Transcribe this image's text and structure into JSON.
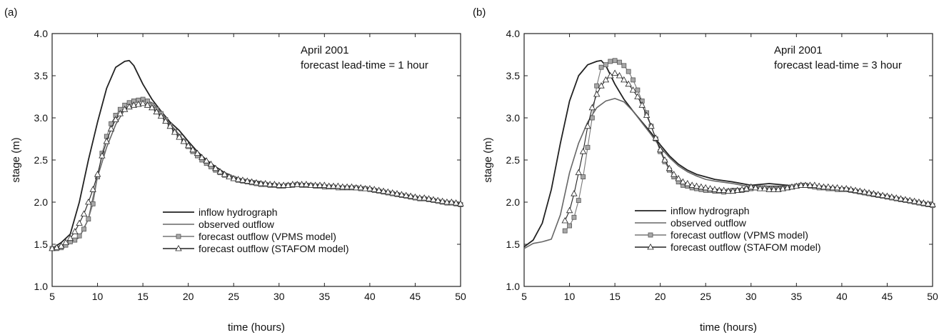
{
  "chart_data": [
    {
      "type": "line",
      "panel_label": "(a)",
      "annotation": [
        "April 2001",
        "forecast lead-time = 1 hour"
      ],
      "xlabel": "time (hours)",
      "ylabel": "stage (m)",
      "xlim": [
        5,
        50
      ],
      "ylim": [
        1.0,
        4.0
      ],
      "xticks": [
        5,
        10,
        15,
        20,
        25,
        30,
        35,
        40,
        45,
        50
      ],
      "yticks": [
        1.0,
        1.5,
        2.0,
        2.5,
        3.0,
        3.5,
        4.0
      ],
      "legend_position": "lower-center",
      "series": [
        {
          "name": "inflow hydrograph",
          "color": "#222222",
          "marker": "none",
          "x": [
            5,
            6,
            7,
            8,
            9,
            10,
            11,
            12,
            13,
            13.5,
            14,
            15,
            16,
            17,
            18,
            19,
            20,
            21,
            22,
            23,
            24,
            25,
            26,
            28,
            30,
            32,
            34,
            36,
            38,
            40,
            42,
            44,
            46,
            48,
            50
          ],
          "y": [
            1.45,
            1.52,
            1.62,
            2.0,
            2.5,
            2.95,
            3.35,
            3.6,
            3.67,
            3.68,
            3.62,
            3.4,
            3.22,
            3.08,
            2.95,
            2.85,
            2.72,
            2.6,
            2.5,
            2.42,
            2.35,
            2.3,
            2.27,
            2.24,
            2.2,
            2.22,
            2.2,
            2.18,
            2.17,
            2.14,
            2.1,
            2.06,
            2.03,
            2.0,
            1.97
          ]
        },
        {
          "name": "observed outflow",
          "color": "#666666",
          "marker": "none",
          "x": [
            5,
            6,
            7,
            8,
            9,
            10,
            11,
            12,
            13,
            14,
            15,
            16,
            17,
            18,
            19,
            20,
            21,
            22,
            23,
            24,
            25,
            26,
            28,
            30,
            32,
            34,
            36,
            38,
            40,
            42,
            44,
            46,
            48,
            50
          ],
          "y": [
            1.45,
            1.46,
            1.52,
            1.58,
            1.8,
            2.3,
            2.65,
            2.92,
            3.1,
            3.19,
            3.22,
            3.18,
            3.07,
            2.93,
            2.8,
            2.66,
            2.55,
            2.45,
            2.37,
            2.31,
            2.27,
            2.25,
            2.22,
            2.18,
            2.2,
            2.19,
            2.18,
            2.17,
            2.15,
            2.1,
            2.06,
            2.03,
            2.0,
            1.97
          ]
        },
        {
          "name": "forecast outflow (VPMS model)",
          "color": "#777777",
          "marker": "square",
          "fill": "#a8a8a8",
          "x": [
            5,
            5.5,
            6,
            6.5,
            7,
            7.5,
            8,
            8.5,
            9,
            9.5,
            10,
            10.5,
            11,
            11.5,
            12,
            12.5,
            13,
            13.5,
            14,
            14.5,
            15,
            15.5,
            16,
            16.5,
            17,
            17.5,
            18,
            18.5,
            19,
            19.5,
            20,
            20.5,
            21,
            21.5,
            22,
            22.5,
            23,
            23.5,
            24,
            24.5,
            25,
            25.5,
            26,
            26.5,
            27,
            27.5,
            28,
            28.5,
            29,
            29.5,
            30,
            30.5,
            31,
            31.5,
            32,
            32.5,
            33,
            33.5,
            34,
            34.5,
            35,
            35.5,
            36,
            36.5,
            37,
            37.5,
            38,
            38.5,
            39,
            39.5,
            40,
            40.5,
            41,
            41.5,
            42,
            42.5,
            43,
            43.5,
            44,
            44.5,
            45,
            45.5,
            46,
            46.5,
            47,
            47.5,
            48,
            48.5,
            49,
            49.5,
            50
          ],
          "y": [
            1.45,
            1.45,
            1.46,
            1.49,
            1.53,
            1.55,
            1.6,
            1.68,
            1.8,
            1.98,
            2.3,
            2.58,
            2.78,
            2.93,
            3.03,
            3.1,
            3.15,
            3.18,
            3.2,
            3.21,
            3.22,
            3.2,
            3.15,
            3.1,
            3.05,
            2.98,
            2.91,
            2.84,
            2.78,
            2.72,
            2.66,
            2.6,
            2.55,
            2.5,
            2.46,
            2.42,
            2.38,
            2.35,
            2.32,
            2.3,
            2.28,
            2.26,
            2.25,
            2.24,
            2.23,
            2.22,
            2.21,
            2.21,
            2.2,
            2.2,
            2.19,
            2.19,
            2.2,
            2.2,
            2.21,
            2.2,
            2.2,
            2.2,
            2.19,
            2.19,
            2.18,
            2.18,
            2.18,
            2.17,
            2.17,
            2.17,
            2.17,
            2.17,
            2.16,
            2.16,
            2.15,
            2.14,
            2.13,
            2.12,
            2.11,
            2.1,
            2.09,
            2.08,
            2.07,
            2.06,
            2.05,
            2.04,
            2.04,
            2.03,
            2.02,
            2.01,
            2.0,
            1.99,
            1.99,
            1.98,
            1.97
          ]
        },
        {
          "name": "forecast outflow (STAFOM model)",
          "color": "#222222",
          "marker": "triangle",
          "fill": "#ffffff",
          "x": [
            5,
            5.5,
            6,
            6.5,
            7,
            7.5,
            8,
            8.5,
            9,
            9.5,
            10,
            10.5,
            11,
            11.5,
            12,
            12.5,
            13,
            13.5,
            14,
            14.5,
            15,
            15.5,
            16,
            16.5,
            17,
            17.5,
            18,
            18.5,
            19,
            19.5,
            20,
            20.5,
            21,
            21.5,
            22,
            22.5,
            23,
            23.5,
            24,
            24.5,
            25,
            25.5,
            26,
            26.5,
            27,
            27.5,
            28,
            28.5,
            29,
            29.5,
            30,
            30.5,
            31,
            31.5,
            32,
            32.5,
            33,
            33.5,
            34,
            34.5,
            35,
            35.5,
            36,
            36.5,
            37,
            37.5,
            38,
            38.5,
            39,
            39.5,
            40,
            40.5,
            41,
            41.5,
            42,
            42.5,
            43,
            43.5,
            44,
            44.5,
            45,
            45.5,
            46,
            46.5,
            47,
            47.5,
            48,
            48.5,
            49,
            49.5,
            50
          ],
          "y": [
            1.45,
            1.46,
            1.48,
            1.52,
            1.57,
            1.65,
            1.75,
            1.86,
            2.0,
            2.15,
            2.33,
            2.55,
            2.72,
            2.87,
            2.98,
            3.05,
            3.1,
            3.13,
            3.15,
            3.16,
            3.17,
            3.15,
            3.12,
            3.07,
            3.02,
            2.96,
            2.9,
            2.83,
            2.77,
            2.72,
            2.67,
            2.62,
            2.58,
            2.53,
            2.49,
            2.45,
            2.4,
            2.36,
            2.33,
            2.3,
            2.28,
            2.27,
            2.26,
            2.25,
            2.24,
            2.23,
            2.22,
            2.22,
            2.21,
            2.21,
            2.2,
            2.2,
            2.2,
            2.21,
            2.21,
            2.21,
            2.21,
            2.2,
            2.2,
            2.2,
            2.2,
            2.19,
            2.19,
            2.19,
            2.18,
            2.18,
            2.18,
            2.17,
            2.17,
            2.16,
            2.16,
            2.15,
            2.14,
            2.13,
            2.12,
            2.11,
            2.1,
            2.09,
            2.08,
            2.07,
            2.06,
            2.05,
            2.05,
            2.04,
            2.03,
            2.02,
            2.01,
            2.0,
            2.0,
            1.99,
            1.98
          ]
        }
      ]
    },
    {
      "type": "line",
      "panel_label": "(b)",
      "annotation": [
        "April 2001",
        "forecast lead-time = 3 hour"
      ],
      "xlabel": "time (hours)",
      "ylabel": "stage (m)",
      "xlim": [
        5,
        50
      ],
      "ylim": [
        1.0,
        4.0
      ],
      "xticks": [
        5,
        10,
        15,
        20,
        25,
        30,
        35,
        40,
        45,
        50
      ],
      "yticks": [
        1.0,
        1.5,
        2.0,
        2.5,
        3.0,
        3.5,
        4.0
      ],
      "legend_position": "lower-center",
      "series": [
        {
          "name": "inflow hydrograph",
          "color": "#222222",
          "marker": "none",
          "x": [
            5,
            6,
            7,
            8,
            9,
            10,
            11,
            12,
            13,
            13.5,
            14,
            15,
            16,
            17,
            18,
            19,
            20,
            21,
            22,
            23,
            24,
            25,
            26,
            28,
            30,
            32,
            34,
            36,
            38,
            40,
            42,
            44,
            46,
            48,
            50
          ],
          "y": [
            1.47,
            1.55,
            1.75,
            2.15,
            2.7,
            3.2,
            3.5,
            3.63,
            3.67,
            3.68,
            3.62,
            3.4,
            3.22,
            3.08,
            2.95,
            2.82,
            2.68,
            2.55,
            2.45,
            2.38,
            2.33,
            2.3,
            2.27,
            2.24,
            2.2,
            2.22,
            2.2,
            2.19,
            2.17,
            2.14,
            2.1,
            2.06,
            2.03,
            2.0,
            1.97
          ]
        },
        {
          "name": "observed outflow",
          "color": "#666666",
          "marker": "none",
          "x": [
            5,
            6,
            7,
            8,
            9,
            10,
            11,
            12,
            13,
            14,
            15,
            16,
            17,
            18,
            19,
            20,
            21,
            22,
            23,
            24,
            25,
            26,
            28,
            30,
            32,
            34,
            36,
            38,
            40,
            42,
            44,
            46,
            48,
            50
          ],
          "y": [
            1.45,
            1.51,
            1.53,
            1.56,
            1.85,
            2.35,
            2.7,
            2.95,
            3.12,
            3.2,
            3.23,
            3.19,
            3.08,
            2.94,
            2.8,
            2.65,
            2.53,
            2.43,
            2.36,
            2.31,
            2.27,
            2.25,
            2.22,
            2.18,
            2.19,
            2.19,
            2.18,
            2.17,
            2.15,
            2.1,
            2.06,
            2.03,
            2.0,
            1.97
          ]
        },
        {
          "name": "forecast outflow (VPMS model)",
          "color": "#777777",
          "marker": "square",
          "fill": "#a8a8a8",
          "x": [
            9.5,
            10,
            10.5,
            11,
            11.5,
            12,
            12.5,
            13,
            13.5,
            14,
            14.5,
            15,
            15.5,
            16,
            16.5,
            17,
            17.5,
            18,
            18.5,
            19,
            19.5,
            20,
            20.5,
            21,
            21.5,
            22,
            22.5,
            23,
            23.5,
            24,
            24.5,
            25,
            25.5,
            26,
            26.5,
            27,
            27.5,
            28,
            28.5,
            29,
            29.5,
            30,
            30.5,
            31,
            31.5,
            32,
            32.5,
            33,
            33.5,
            34,
            34.5,
            35,
            35.5,
            36,
            36.5,
            37,
            37.5,
            38,
            38.5,
            39,
            39.5,
            40,
            40.5,
            41,
            41.5,
            42,
            42.5,
            43,
            43.5,
            44,
            44.5,
            45,
            45.5,
            46,
            46.5,
            47,
            47.5,
            48,
            48.5,
            49,
            49.5,
            50
          ],
          "y": [
            1.66,
            1.72,
            1.82,
            2.02,
            2.3,
            2.65,
            3.0,
            3.38,
            3.6,
            3.63,
            3.67,
            3.68,
            3.66,
            3.62,
            3.55,
            3.45,
            3.33,
            3.2,
            3.06,
            2.9,
            2.75,
            2.6,
            2.48,
            2.38,
            2.3,
            2.24,
            2.2,
            2.19,
            2.17,
            2.16,
            2.15,
            2.14,
            2.14,
            2.13,
            2.13,
            2.12,
            2.13,
            2.14,
            2.14,
            2.14,
            2.15,
            2.16,
            2.17,
            2.17,
            2.17,
            2.16,
            2.16,
            2.16,
            2.16,
            2.17,
            2.18,
            2.19,
            2.2,
            2.2,
            2.19,
            2.18,
            2.17,
            2.17,
            2.16,
            2.16,
            2.15,
            2.15,
            2.15,
            2.14,
            2.13,
            2.12,
            2.11,
            2.1,
            2.09,
            2.08,
            2.07,
            2.06,
            2.05,
            2.04,
            2.03,
            2.02,
            2.01,
            2.0,
            1.99,
            1.98,
            1.97,
            1.96
          ]
        },
        {
          "name": "forecast outflow (STAFOM model)",
          "color": "#222222",
          "marker": "triangle",
          "fill": "#ffffff",
          "x": [
            9.5,
            10,
            10.5,
            11,
            11.5,
            12,
            12.5,
            13,
            13.5,
            14,
            14.5,
            15,
            15.5,
            16,
            16.5,
            17,
            17.5,
            18,
            18.5,
            19,
            19.5,
            20,
            20.5,
            21,
            21.5,
            22,
            22.5,
            23,
            23.5,
            24,
            24.5,
            25,
            25.5,
            26,
            26.5,
            27,
            27.5,
            28,
            28.5,
            29,
            29.5,
            30,
            30.5,
            31,
            31.5,
            32,
            32.5,
            33,
            33.5,
            34,
            34.5,
            35,
            35.5,
            36,
            36.5,
            37,
            37.5,
            38,
            38.5,
            39,
            39.5,
            40,
            40.5,
            41,
            41.5,
            42,
            42.5,
            43,
            43.5,
            44,
            44.5,
            45,
            45.5,
            46,
            46.5,
            47,
            47.5,
            48,
            48.5,
            49,
            49.5,
            50
          ],
          "y": [
            1.78,
            1.9,
            2.1,
            2.35,
            2.6,
            2.9,
            3.12,
            3.28,
            3.38,
            3.45,
            3.5,
            3.53,
            3.5,
            3.45,
            3.4,
            3.33,
            3.25,
            3.15,
            3.03,
            2.9,
            2.76,
            2.62,
            2.5,
            2.4,
            2.33,
            2.28,
            2.24,
            2.22,
            2.2,
            2.19,
            2.18,
            2.17,
            2.16,
            2.15,
            2.14,
            2.14,
            2.13,
            2.13,
            2.14,
            2.15,
            2.16,
            2.18,
            2.17,
            2.16,
            2.16,
            2.15,
            2.15,
            2.15,
            2.16,
            2.17,
            2.18,
            2.19,
            2.2,
            2.2,
            2.2,
            2.2,
            2.19,
            2.18,
            2.18,
            2.17,
            2.17,
            2.16,
            2.16,
            2.15,
            2.14,
            2.13,
            2.12,
            2.11,
            2.1,
            2.09,
            2.08,
            2.07,
            2.06,
            2.05,
            2.04,
            2.03,
            2.02,
            2.01,
            2.0,
            1.99,
            1.98,
            1.97
          ]
        }
      ]
    }
  ]
}
